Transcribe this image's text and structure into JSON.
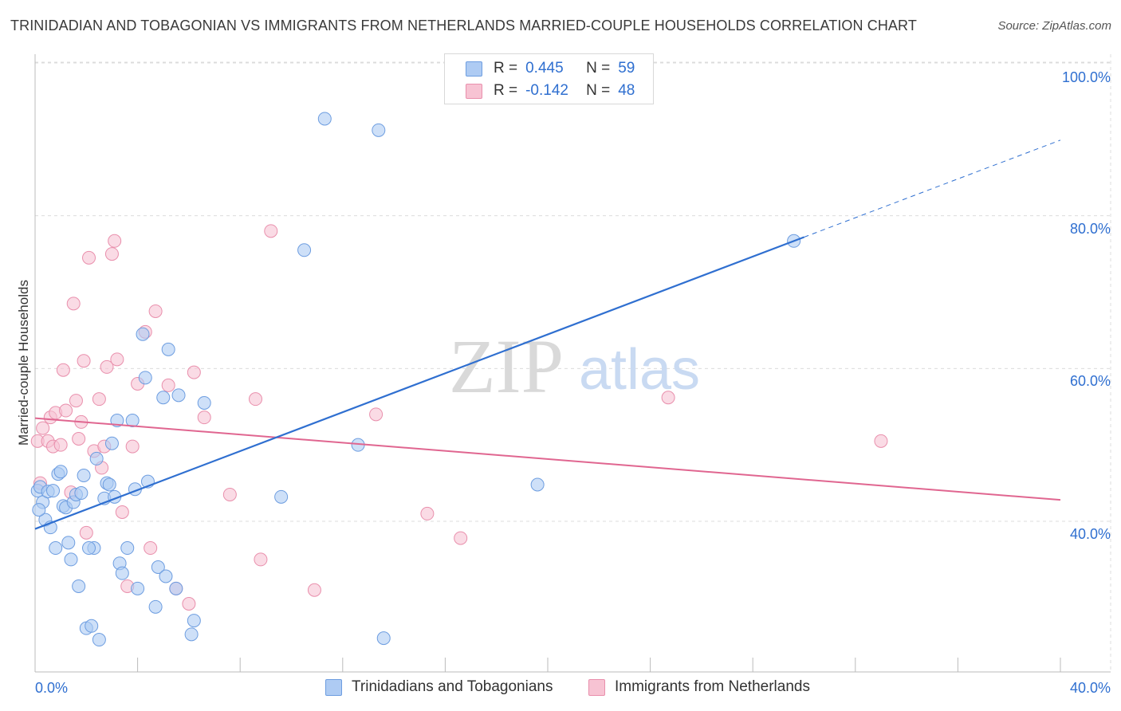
{
  "header": {
    "title": "TRINIDADIAN AND TOBAGONIAN VS IMMIGRANTS FROM NETHERLANDS MARRIED-COUPLE HOUSEHOLDS CORRELATION CHART",
    "source": "Source: ZipAtlas.com"
  },
  "watermark": {
    "zip": "ZIP",
    "atlas": "atlas"
  },
  "legend": {
    "r_label": "R =",
    "n_label": "N =",
    "series": [
      {
        "r": "0.445",
        "n": "59"
      },
      {
        "r": "-0.142",
        "n": "48"
      }
    ]
  },
  "bottom_legend": {
    "items": [
      "Trinidadians and Tobagonians",
      "Immigrants from Netherlands"
    ]
  },
  "colors": {
    "blue_fill": "#aecbf3",
    "blue_stroke": "#6d9de0",
    "blue_line": "#2f6fd0",
    "pink_fill": "#f7c3d3",
    "pink_stroke": "#e98fac",
    "pink_line": "#e06690",
    "axis_text": "#2f6fd0",
    "grid": "#dcdcdc"
  },
  "chart_data": {
    "type": "scatter",
    "title": "TRINIDADIAN AND TOBAGONIAN VS IMMIGRANTS FROM NETHERLANDS MARRIED-COUPLE HOUSEHOLDS CORRELATION CHART",
    "xlabel": "",
    "ylabel": "Married-couple Households",
    "x_tick_labels": [
      "0.0%",
      "40.0%"
    ],
    "y_tick_labels": [
      "40.0%",
      "60.0%",
      "80.0%",
      "100.0%"
    ],
    "y_tick_values": [
      40,
      60,
      80,
      100
    ],
    "xlim": [
      0,
      40
    ],
    "ylim": [
      21,
      104
    ],
    "grid": true,
    "legend_position": "top-center",
    "series": [
      {
        "name": "Trinidadians and Tobagonians",
        "r": 0.445,
        "n": 59,
        "trend": {
          "x0": 0,
          "y0": 39.0,
          "x1": 30.0,
          "y1": 77.2,
          "dashed_to_x": 40,
          "dashed_to_y": 89.9
        },
        "points": [
          [
            0.1,
            44.0
          ],
          [
            0.2,
            44.5
          ],
          [
            0.3,
            42.5
          ],
          [
            0.4,
            40.2
          ],
          [
            0.5,
            43.9
          ],
          [
            0.6,
            39.2
          ],
          [
            0.8,
            36.5
          ],
          [
            0.9,
            46.2
          ],
          [
            1.0,
            46.5
          ],
          [
            1.1,
            42.0
          ],
          [
            1.2,
            41.8
          ],
          [
            1.4,
            35.0
          ],
          [
            1.5,
            42.5
          ],
          [
            1.6,
            43.5
          ],
          [
            1.7,
            31.5
          ],
          [
            1.8,
            43.7
          ],
          [
            1.9,
            46.0
          ],
          [
            2.0,
            26.0
          ],
          [
            2.2,
            26.3
          ],
          [
            2.3,
            36.5
          ],
          [
            2.4,
            48.2
          ],
          [
            2.5,
            24.5
          ],
          [
            2.7,
            43.0
          ],
          [
            2.8,
            45.0
          ],
          [
            2.9,
            44.8
          ],
          [
            3.0,
            50.2
          ],
          [
            3.1,
            43.2
          ],
          [
            3.2,
            53.2
          ],
          [
            3.3,
            34.5
          ],
          [
            3.4,
            33.2
          ],
          [
            3.6,
            36.5
          ],
          [
            3.8,
            53.2
          ],
          [
            3.9,
            44.2
          ],
          [
            4.0,
            31.2
          ],
          [
            4.2,
            64.5
          ],
          [
            4.3,
            58.8
          ],
          [
            4.4,
            45.2
          ],
          [
            4.7,
            28.8
          ],
          [
            4.8,
            34.0
          ],
          [
            5.0,
            56.2
          ],
          [
            5.1,
            32.8
          ],
          [
            5.2,
            62.5
          ],
          [
            5.5,
            31.2
          ],
          [
            5.6,
            56.5
          ],
          [
            6.2,
            27.0
          ],
          [
            6.1,
            25.2
          ],
          [
            6.6,
            55.5
          ],
          [
            9.6,
            43.2
          ],
          [
            10.5,
            75.5
          ],
          [
            11.3,
            92.7
          ],
          [
            12.6,
            50.0
          ],
          [
            13.4,
            91.2
          ],
          [
            13.6,
            24.7
          ],
          [
            19.6,
            44.8
          ],
          [
            29.6,
            76.7
          ],
          [
            0.15,
            41.5
          ],
          [
            0.7,
            44.0
          ],
          [
            1.3,
            37.2
          ],
          [
            2.1,
            36.5
          ]
        ]
      },
      {
        "name": "Immigrants from Netherlands",
        "r": -0.142,
        "n": 48,
        "trend": {
          "x0": 0,
          "y0": 53.5,
          "x1": 40,
          "y1": 42.8
        },
        "points": [
          [
            0.1,
            50.5
          ],
          [
            0.2,
            45.0
          ],
          [
            0.3,
            52.2
          ],
          [
            0.5,
            50.5
          ],
          [
            0.6,
            53.6
          ],
          [
            0.7,
            49.8
          ],
          [
            0.8,
            54.2
          ],
          [
            1.0,
            50.0
          ],
          [
            1.1,
            59.8
          ],
          [
            1.2,
            54.5
          ],
          [
            1.4,
            43.8
          ],
          [
            1.5,
            68.5
          ],
          [
            1.6,
            55.8
          ],
          [
            1.7,
            50.8
          ],
          [
            1.8,
            53.0
          ],
          [
            1.9,
            61.0
          ],
          [
            2.0,
            38.5
          ],
          [
            2.1,
            74.5
          ],
          [
            2.3,
            49.2
          ],
          [
            2.5,
            56.0
          ],
          [
            2.6,
            47.0
          ],
          [
            2.7,
            49.8
          ],
          [
            2.8,
            60.2
          ],
          [
            3.0,
            75.0
          ],
          [
            3.1,
            76.7
          ],
          [
            3.2,
            61.2
          ],
          [
            3.4,
            41.2
          ],
          [
            3.6,
            31.5
          ],
          [
            3.8,
            49.8
          ],
          [
            4.0,
            58.0
          ],
          [
            4.3,
            64.8
          ],
          [
            4.5,
            36.5
          ],
          [
            4.7,
            67.5
          ],
          [
            5.2,
            57.8
          ],
          [
            5.5,
            31.2
          ],
          [
            6.0,
            29.2
          ],
          [
            6.2,
            59.5
          ],
          [
            6.6,
            53.6
          ],
          [
            7.6,
            43.5
          ],
          [
            8.6,
            56.0
          ],
          [
            8.8,
            35.0
          ],
          [
            9.2,
            78.0
          ],
          [
            10.9,
            31.0
          ],
          [
            13.3,
            54.0
          ],
          [
            15.3,
            41.0
          ],
          [
            16.6,
            37.8
          ],
          [
            24.7,
            56.2
          ],
          [
            33.0,
            50.5
          ]
        ]
      }
    ]
  }
}
